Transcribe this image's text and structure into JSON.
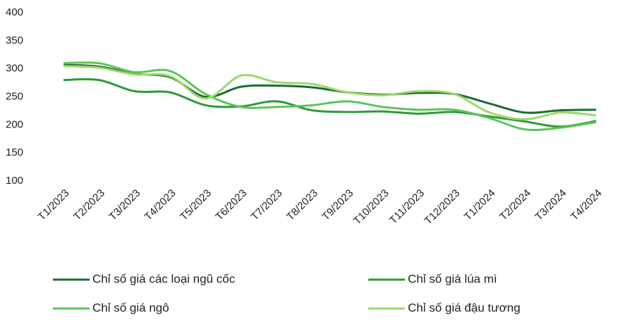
{
  "chart_data": {
    "type": "line",
    "categories": [
      "T1/2023",
      "T2/2023",
      "T3/2023",
      "T4/2023",
      "T5/2023",
      "T6/2023",
      "T7/2023",
      "T8/2023",
      "T9/2023",
      "T10/2023",
      "T11/2023",
      "T12/2023",
      "T1/2024",
      "T2/2024",
      "T3/2024",
      "T4/2024"
    ],
    "series": [
      {
        "name": "Chỉ số giá các loại ngũ cốc",
        "color": "#1d6b34",
        "values": [
          307,
          304,
          291,
          285,
          250,
          268,
          270,
          267,
          258,
          254,
          257,
          255,
          238,
          222,
          226,
          227
        ]
      },
      {
        "name": "Chỉ số giá lúa mì",
        "color": "#2e9a3a",
        "values": [
          280,
          280,
          260,
          258,
          235,
          233,
          242,
          226,
          223,
          224,
          220,
          223,
          215,
          206,
          197,
          207
        ]
      },
      {
        "name": "Chỉ số giá ngô",
        "color": "#5ac65a",
        "values": [
          310,
          310,
          294,
          296,
          255,
          232,
          232,
          235,
          242,
          232,
          227,
          227,
          212,
          192,
          195,
          205
        ]
      },
      {
        "name": "Chỉ số giá đậu tương",
        "color": "#9ed86a",
        "values": [
          305,
          302,
          290,
          287,
          247,
          288,
          276,
          273,
          258,
          253,
          260,
          255,
          222,
          210,
          222,
          217
        ]
      }
    ],
    "ylim": [
      100,
      400
    ],
    "yticks": [
      100,
      150,
      200,
      250,
      300,
      350,
      400
    ],
    "grid": false
  }
}
